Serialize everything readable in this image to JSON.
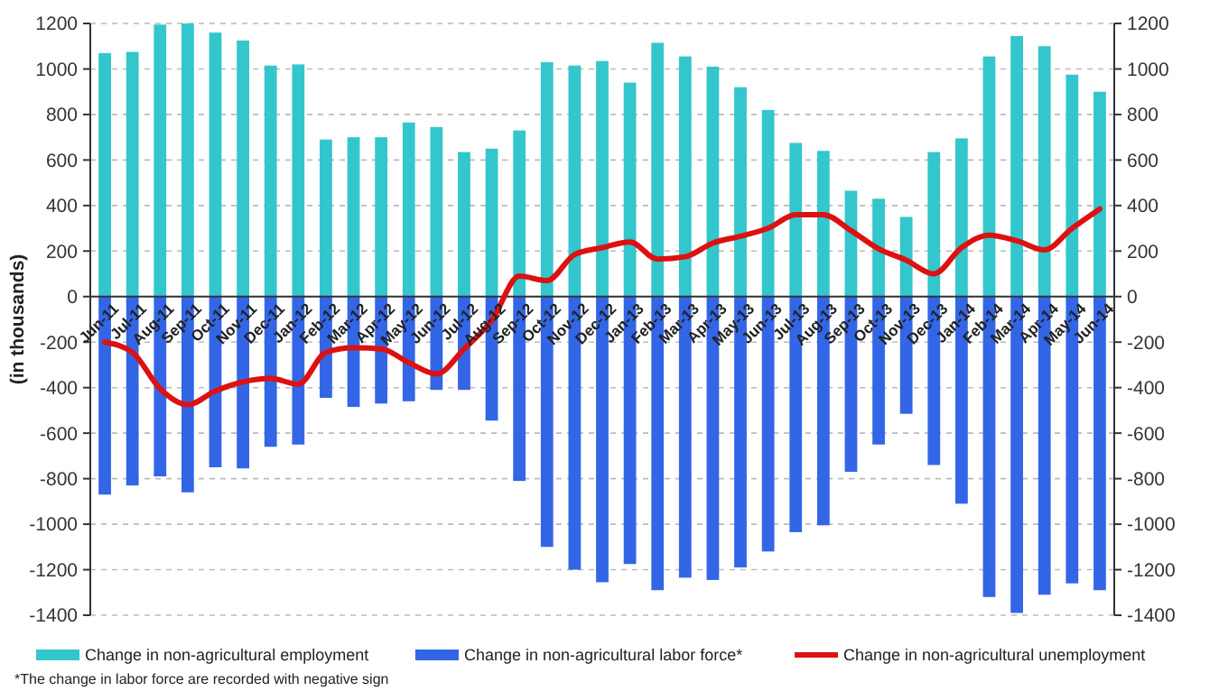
{
  "chart_data": {
    "type": "bar",
    "ylabel": "(in thousands)",
    "categories": [
      "Jun-11",
      "Jul-11",
      "Aug-11",
      "Sep-11",
      "Oct-11",
      "Nov-11",
      "Dec-11",
      "Jan-12",
      "Feb-12",
      "Mar-12",
      "Apr-12",
      "May-12",
      "Jun-12",
      "Jul-12",
      "Aug-12",
      "Sep-12",
      "Oct-12",
      "Nov-12",
      "Dec-12",
      "Jan-13",
      "Feb-13",
      "Mar-13",
      "Apr-13",
      "May-13",
      "Jun-13",
      "Jul-13",
      "Aug-13",
      "Sep-13",
      "Oct-13",
      "Nov-13",
      "Dec-13",
      "Jan-14",
      "Feb-14",
      "Mar-14",
      "Apr-14",
      "May-14",
      "Jun-14"
    ],
    "series": [
      {
        "name": "Change in non-agricultural employment",
        "color": "#33c6cc",
        "values": [
          1070,
          1075,
          1195,
          1200,
          1160,
          1125,
          1015,
          1020,
          690,
          700,
          700,
          765,
          745,
          635,
          650,
          730,
          1030,
          1015,
          1035,
          940,
          1115,
          1055,
          1010,
          920,
          820,
          675,
          640,
          465,
          430,
          350,
          635,
          695,
          1055,
          1145,
          1100,
          975,
          900
        ]
      },
      {
        "name": "Change in non-agricultural labor force*",
        "color": "#3366e6",
        "values": [
          -870,
          -830,
          -790,
          -860,
          -750,
          -755,
          -660,
          -650,
          -445,
          -485,
          -470,
          -460,
          -410,
          -410,
          -545,
          -810,
          -1100,
          -1200,
          -1255,
          -1175,
          -1290,
          -1235,
          -1245,
          -1190,
          -1120,
          -1035,
          -1005,
          -770,
          -650,
          -515,
          -740,
          -910,
          -1320,
          -1390,
          -1310,
          -1260,
          -1290
        ]
      },
      {
        "name": "Change in non-agricultural unemployment",
        "type": "line",
        "color": "#dd1111",
        "values": [
          -200,
          -245,
          -405,
          -475,
          -415,
          -375,
          -360,
          -385,
          -245,
          -225,
          -230,
          -290,
          -340,
          -230,
          -105,
          90,
          70,
          185,
          215,
          240,
          165,
          175,
          235,
          265,
          300,
          360,
          360,
          290,
          210,
          160,
          100,
          215,
          270,
          245,
          205,
          300,
          385
        ]
      }
    ],
    "ylim": [
      -1400,
      1200
    ],
    "yticks": [
      -1400,
      -1200,
      -1000,
      -800,
      -600,
      -400,
      -200,
      0,
      200,
      400,
      600,
      800,
      1000,
      1200
    ],
    "y2lim": [
      -1400,
      1200
    ],
    "y2ticks": [
      -1400,
      -1200,
      -1000,
      -800,
      -600,
      -400,
      -200,
      0,
      200,
      400,
      600,
      800,
      1000,
      1200
    ],
    "stacked": true,
    "grid": "y",
    "legend": "bottom",
    "marker": "none",
    "line_style": "solid",
    "annotations": [
      "*The change in labor force are recorded with negative sign"
    ]
  }
}
